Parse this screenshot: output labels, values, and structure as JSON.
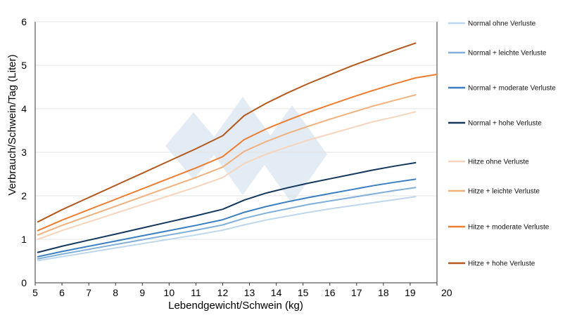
{
  "chart_data": {
    "type": "line",
    "xlabel": "Lebendgewicht/Schwein (kg)",
    "ylabel": "Verbrauch/Schwein/Tag (Liter)",
    "xlim": [
      5,
      20
    ],
    "ylim": [
      0,
      6
    ],
    "x_ticks": [
      "5",
      "6",
      "7",
      "8",
      "9",
      "10",
      "11",
      "12",
      "13",
      "14",
      "15",
      "16",
      "17",
      "18",
      "19",
      "20"
    ],
    "y_ticks": [
      "0",
      "1",
      "2",
      "3",
      "4",
      "5",
      "6"
    ],
    "legend_position": "right",
    "gridlines": "horizontal",
    "series": [
      {
        "name": "Normal ohne Verluste",
        "color": "#bdd7ee",
        "x": [
          5.1,
          6.0,
          7.0,
          8.0,
          9.0,
          10.0,
          11.0,
          12.0,
          12.8,
          13.6,
          14.4,
          15.2,
          16.0,
          16.8,
          17.6,
          18.4,
          19.2
        ],
        "y": [
          0.51,
          0.6,
          0.7,
          0.8,
          0.9,
          1.0,
          1.1,
          1.21,
          1.33,
          1.44,
          1.53,
          1.62,
          1.7,
          1.77,
          1.84,
          1.91,
          1.98
        ]
      },
      {
        "name": "Normal + leichte Verluste",
        "color": "#7fb0dc",
        "x": [
          5.1,
          6.0,
          7.0,
          8.0,
          9.0,
          10.0,
          11.0,
          12.0,
          12.8,
          13.6,
          14.4,
          15.2,
          16.0,
          16.8,
          17.6,
          18.4,
          19.2
        ],
        "y": [
          0.55,
          0.66,
          0.77,
          0.88,
          0.99,
          1.1,
          1.21,
          1.33,
          1.48,
          1.6,
          1.7,
          1.8,
          1.88,
          1.96,
          2.04,
          2.12,
          2.19
        ]
      },
      {
        "name": "Normal + moderate Verluste",
        "color": "#3a7fc1",
        "x": [
          5.1,
          6.0,
          7.0,
          8.0,
          9.0,
          10.0,
          11.0,
          12.0,
          12.8,
          13.6,
          14.4,
          15.2,
          16.0,
          16.8,
          17.6,
          18.4,
          19.2
        ],
        "y": [
          0.6,
          0.72,
          0.84,
          0.96,
          1.08,
          1.2,
          1.32,
          1.45,
          1.62,
          1.75,
          1.86,
          1.96,
          2.05,
          2.14,
          2.23,
          2.31,
          2.38
        ]
      },
      {
        "name": "Normal + hohe Verluste",
        "color": "#14375e",
        "x": [
          5.1,
          6.0,
          7.0,
          8.0,
          9.0,
          10.0,
          11.0,
          12.0,
          12.8,
          13.6,
          14.4,
          15.2,
          16.0,
          16.8,
          17.6,
          18.4,
          19.2
        ],
        "y": [
          0.7,
          0.84,
          0.98,
          1.12,
          1.26,
          1.4,
          1.54,
          1.69,
          1.9,
          2.06,
          2.18,
          2.29,
          2.39,
          2.49,
          2.59,
          2.68,
          2.76
        ]
      },
      {
        "name": "Hitze ohne Verluste",
        "color": "#f6d5bc",
        "x": [
          5.1,
          6.0,
          7.0,
          8.0,
          9.0,
          10.0,
          11.0,
          12.0,
          12.8,
          13.6,
          14.4,
          15.2,
          16.0,
          16.8,
          17.6,
          18.4,
          19.2
        ],
        "y": [
          1.0,
          1.2,
          1.4,
          1.6,
          1.8,
          2.0,
          2.2,
          2.42,
          2.74,
          2.95,
          3.12,
          3.28,
          3.42,
          3.56,
          3.7,
          3.81,
          3.93
        ]
      },
      {
        "name": "Hitze + leichte Verluste",
        "color": "#f2b07c",
        "x": [
          5.1,
          6.0,
          7.0,
          8.0,
          9.0,
          10.0,
          11.0,
          12.0,
          12.8,
          13.6,
          14.4,
          15.2,
          16.0,
          16.8,
          17.6,
          18.4,
          19.2
        ],
        "y": [
          1.1,
          1.32,
          1.54,
          1.76,
          1.98,
          2.2,
          2.42,
          2.66,
          3.02,
          3.24,
          3.43,
          3.6,
          3.76,
          3.91,
          4.06,
          4.19,
          4.32
        ]
      },
      {
        "name": "Hitze + moderate Verluste",
        "color": "#ed7d31",
        "x": [
          5.1,
          6.0,
          7.0,
          8.0,
          9.0,
          10.0,
          11.0,
          12.0,
          12.8,
          13.6,
          14.4,
          15.2,
          16.0,
          16.8,
          17.6,
          18.4,
          19.2,
          20.0
        ],
        "y": [
          1.2,
          1.44,
          1.68,
          1.92,
          2.16,
          2.4,
          2.64,
          2.9,
          3.29,
          3.53,
          3.73,
          3.92,
          4.09,
          4.26,
          4.42,
          4.57,
          4.71,
          4.79
        ]
      },
      {
        "name": "Hitze + hohe Verluste",
        "color": "#b4581d",
        "x": [
          5.1,
          6.0,
          7.0,
          8.0,
          9.0,
          10.0,
          11.0,
          12.0,
          12.8,
          13.6,
          14.4,
          15.2,
          16.0,
          16.8,
          17.6,
          18.4,
          19.2
        ],
        "y": [
          1.4,
          1.68,
          1.96,
          2.24,
          2.52,
          2.8,
          3.08,
          3.38,
          3.84,
          4.12,
          4.36,
          4.58,
          4.78,
          4.98,
          5.16,
          5.34,
          5.51
        ]
      }
    ]
  }
}
